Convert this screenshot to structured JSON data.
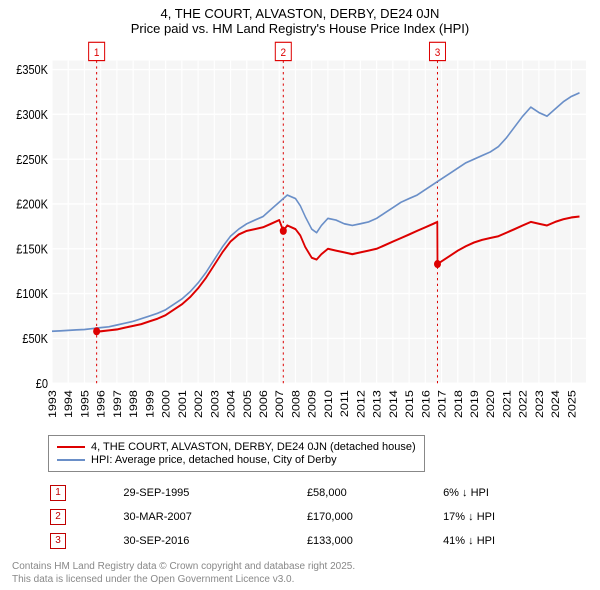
{
  "title_line1": "4, THE COURT, ALVASTON, DERBY, DE24 0JN",
  "title_line2": "Price paid vs. HM Land Registry's House Price Index (HPI)",
  "chart": {
    "type": "line",
    "background_color": "#f6f6f6",
    "plot_bg": "#f6f6f6",
    "grid_color": "#ffffff",
    "x": {
      "min": 1993,
      "max": 2025.9,
      "ticks": [
        1993,
        1994,
        1995,
        1996,
        1997,
        1998,
        1999,
        2000,
        2001,
        2002,
        2003,
        2004,
        2005,
        2006,
        2007,
        2008,
        2009,
        2010,
        2011,
        2012,
        2013,
        2014,
        2015,
        2016,
        2017,
        2018,
        2019,
        2020,
        2021,
        2022,
        2023,
        2024,
        2025
      ]
    },
    "y": {
      "min": 0,
      "max": 360000,
      "ticks": [
        0,
        50000,
        100000,
        150000,
        200000,
        250000,
        300000,
        350000
      ],
      "tick_labels": [
        "£0",
        "£50K",
        "£100K",
        "£150K",
        "£200K",
        "£250K",
        "£300K",
        "£350K"
      ]
    },
    "series": [
      {
        "id": "property",
        "label": "4, THE COURT, ALVASTON, DERBY, DE24 0JN (detached house)",
        "color": "#dd0000",
        "width": 1.8,
        "data": [
          [
            1995.75,
            58000
          ],
          [
            1996.0,
            58000
          ],
          [
            1996.5,
            59000
          ],
          [
            1997.0,
            60000
          ],
          [
            1997.5,
            62000
          ],
          [
            1998.0,
            64000
          ],
          [
            1998.5,
            66000
          ],
          [
            1999.0,
            69000
          ],
          [
            1999.5,
            72000
          ],
          [
            2000.0,
            76000
          ],
          [
            2000.5,
            82000
          ],
          [
            2001.0,
            88000
          ],
          [
            2001.5,
            96000
          ],
          [
            2002.0,
            106000
          ],
          [
            2002.5,
            118000
          ],
          [
            2003.0,
            132000
          ],
          [
            2003.5,
            146000
          ],
          [
            2004.0,
            158000
          ],
          [
            2004.5,
            166000
          ],
          [
            2005.0,
            170000
          ],
          [
            2005.5,
            172000
          ],
          [
            2006.0,
            174000
          ],
          [
            2006.5,
            178000
          ],
          [
            2007.0,
            182000
          ],
          [
            2007.25,
            170000
          ],
          [
            2007.5,
            176000
          ],
          [
            2008.0,
            172000
          ],
          [
            2008.3,
            165000
          ],
          [
            2008.6,
            152000
          ],
          [
            2009.0,
            140000
          ],
          [
            2009.3,
            138000
          ],
          [
            2009.6,
            144000
          ],
          [
            2010.0,
            150000
          ],
          [
            2010.5,
            148000
          ],
          [
            2011.0,
            146000
          ],
          [
            2011.5,
            144000
          ],
          [
            2012.0,
            146000
          ],
          [
            2012.5,
            148000
          ],
          [
            2013.0,
            150000
          ],
          [
            2013.5,
            154000
          ],
          [
            2014.0,
            158000
          ],
          [
            2014.5,
            162000
          ],
          [
            2015.0,
            166000
          ],
          [
            2015.5,
            170000
          ],
          [
            2016.0,
            174000
          ],
          [
            2016.5,
            178000
          ],
          [
            2016.74,
            180000
          ],
          [
            2016.75,
            133000
          ],
          [
            2017.0,
            136000
          ],
          [
            2017.5,
            142000
          ],
          [
            2018.0,
            148000
          ],
          [
            2018.5,
            153000
          ],
          [
            2019.0,
            157000
          ],
          [
            2019.5,
            160000
          ],
          [
            2020.0,
            162000
          ],
          [
            2020.5,
            164000
          ],
          [
            2021.0,
            168000
          ],
          [
            2021.5,
            172000
          ],
          [
            2022.0,
            176000
          ],
          [
            2022.5,
            180000
          ],
          [
            2023.0,
            178000
          ],
          [
            2023.5,
            176000
          ],
          [
            2024.0,
            180000
          ],
          [
            2024.5,
            183000
          ],
          [
            2025.0,
            185000
          ],
          [
            2025.5,
            186000
          ]
        ]
      },
      {
        "id": "hpi",
        "label": "HPI: Average price, detached house, City of Derby",
        "color": "#6a8fc8",
        "width": 1.5,
        "data": [
          [
            1993.0,
            58000
          ],
          [
            1993.5,
            58500
          ],
          [
            1994.0,
            59000
          ],
          [
            1994.5,
            59500
          ],
          [
            1995.0,
            60000
          ],
          [
            1995.5,
            61000
          ],
          [
            1996.0,
            62000
          ],
          [
            1996.5,
            63000
          ],
          [
            1997.0,
            65000
          ],
          [
            1997.5,
            67000
          ],
          [
            1998.0,
            69000
          ],
          [
            1998.5,
            72000
          ],
          [
            1999.0,
            75000
          ],
          [
            1999.5,
            78000
          ],
          [
            2000.0,
            82000
          ],
          [
            2000.5,
            88000
          ],
          [
            2001.0,
            94000
          ],
          [
            2001.5,
            102000
          ],
          [
            2002.0,
            112000
          ],
          [
            2002.5,
            124000
          ],
          [
            2003.0,
            138000
          ],
          [
            2003.5,
            152000
          ],
          [
            2004.0,
            164000
          ],
          [
            2004.5,
            172000
          ],
          [
            2005.0,
            178000
          ],
          [
            2005.5,
            182000
          ],
          [
            2006.0,
            186000
          ],
          [
            2006.5,
            194000
          ],
          [
            2007.0,
            202000
          ],
          [
            2007.5,
            210000
          ],
          [
            2008.0,
            206000
          ],
          [
            2008.3,
            198000
          ],
          [
            2008.6,
            186000
          ],
          [
            2009.0,
            172000
          ],
          [
            2009.3,
            168000
          ],
          [
            2009.6,
            176000
          ],
          [
            2010.0,
            184000
          ],
          [
            2010.5,
            182000
          ],
          [
            2011.0,
            178000
          ],
          [
            2011.5,
            176000
          ],
          [
            2012.0,
            178000
          ],
          [
            2012.5,
            180000
          ],
          [
            2013.0,
            184000
          ],
          [
            2013.5,
            190000
          ],
          [
            2014.0,
            196000
          ],
          [
            2014.5,
            202000
          ],
          [
            2015.0,
            206000
          ],
          [
            2015.5,
            210000
          ],
          [
            2016.0,
            216000
          ],
          [
            2016.5,
            222000
          ],
          [
            2017.0,
            228000
          ],
          [
            2017.5,
            234000
          ],
          [
            2018.0,
            240000
          ],
          [
            2018.5,
            246000
          ],
          [
            2019.0,
            250000
          ],
          [
            2019.5,
            254000
          ],
          [
            2020.0,
            258000
          ],
          [
            2020.5,
            264000
          ],
          [
            2021.0,
            274000
          ],
          [
            2021.5,
            286000
          ],
          [
            2022.0,
            298000
          ],
          [
            2022.5,
            308000
          ],
          [
            2023.0,
            302000
          ],
          [
            2023.5,
            298000
          ],
          [
            2024.0,
            306000
          ],
          [
            2024.5,
            314000
          ],
          [
            2025.0,
            320000
          ],
          [
            2025.5,
            324000
          ]
        ]
      }
    ],
    "vlines": [
      {
        "x": 1995.75,
        "label": "1",
        "color": "#dd0000"
      },
      {
        "x": 2007.25,
        "label": "2",
        "color": "#dd0000"
      },
      {
        "x": 2016.75,
        "label": "3",
        "color": "#dd0000"
      }
    ]
  },
  "events": [
    {
      "n": "1",
      "date": "29-SEP-1995",
      "price": "£58,000",
      "delta": "6% ↓ HPI"
    },
    {
      "n": "2",
      "date": "30-MAR-2007",
      "price": "£170,000",
      "delta": "17% ↓ HPI"
    },
    {
      "n": "3",
      "date": "30-SEP-2016",
      "price": "£133,000",
      "delta": "41% ↓ HPI"
    }
  ],
  "license_l1": "Contains HM Land Registry data © Crown copyright and database right 2025.",
  "license_l2": "This data is licensed under the Open Government Licence v3.0."
}
